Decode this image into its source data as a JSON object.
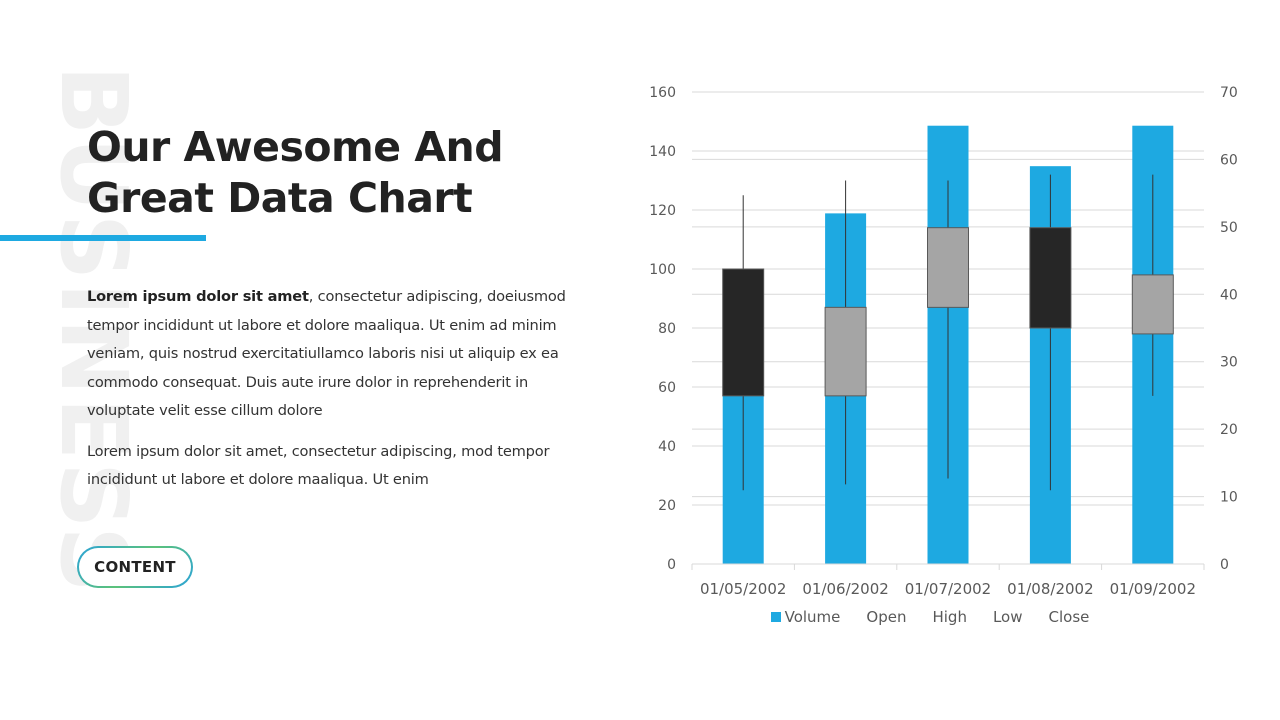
{
  "slide": {
    "watermark": "BUSINESS",
    "title_line1": "Our Awesome And",
    "title_line2": "Great Data Chart",
    "paragraph1_bold": "Lorem ipsum dolor sit amet",
    "paragraph1_rest": ", consectetur adipiscing, doeiusmod tempor incididunt ut labore et dolore maaliqua. Ut enim ad minim veniam, quis nostrud exercitatiullamco laboris nisi ut aliquip ex ea commodo consequat. Duis aute irure dolor in reprehenderit in voluptate velit esse cillum dolore",
    "paragraph2": "Lorem ipsum dolor sit amet, consectetur adipiscing, mod tempor incididunt ut labore et dolore maaliqua. Ut enim",
    "button_label": "CONTENT",
    "accent_color": "#1ea9e1"
  },
  "chart_data": {
    "type": "bar",
    "subtype": "volume-open-high-low-close stock chart",
    "categories": [
      "01/05/2002",
      "01/06/2002",
      "01/07/2002",
      "01/08/2002",
      "01/09/2002"
    ],
    "series": [
      {
        "name": "Volume",
        "axis": "right",
        "values": [
          35,
          52,
          65,
          59,
          65
        ],
        "color": "#1ea9e1"
      },
      {
        "name": "Open",
        "axis": "left",
        "values": [
          100,
          57,
          87,
          114,
          78
        ]
      },
      {
        "name": "High",
        "axis": "left",
        "values": [
          125,
          130,
          130,
          132,
          132
        ]
      },
      {
        "name": "Low",
        "axis": "left",
        "values": [
          25,
          27,
          29,
          25,
          57
        ]
      },
      {
        "name": "Close",
        "axis": "left",
        "values": [
          57,
          87,
          114,
          80,
          98
        ]
      }
    ],
    "y_left": {
      "min": 0,
      "max": 160,
      "step": 20,
      "ticks": [
        "0",
        "20",
        "40",
        "60",
        "80",
        "100",
        "120",
        "140",
        "160"
      ]
    },
    "y_right": {
      "min": 0,
      "max": 70,
      "step": 10,
      "ticks": [
        "0",
        "10",
        "20",
        "30",
        "40",
        "50",
        "60",
        "70"
      ]
    },
    "legend": [
      "Volume",
      "Open",
      "High",
      "Low",
      "Close"
    ],
    "legend_position": "bottom",
    "grid": true,
    "colors": {
      "volume": "#1ea9e1",
      "up_box": "#a5a5a5",
      "down_box": "#262626",
      "wick": "#333333",
      "grid": "#d9d9d9",
      "box_border": "#595959"
    }
  }
}
